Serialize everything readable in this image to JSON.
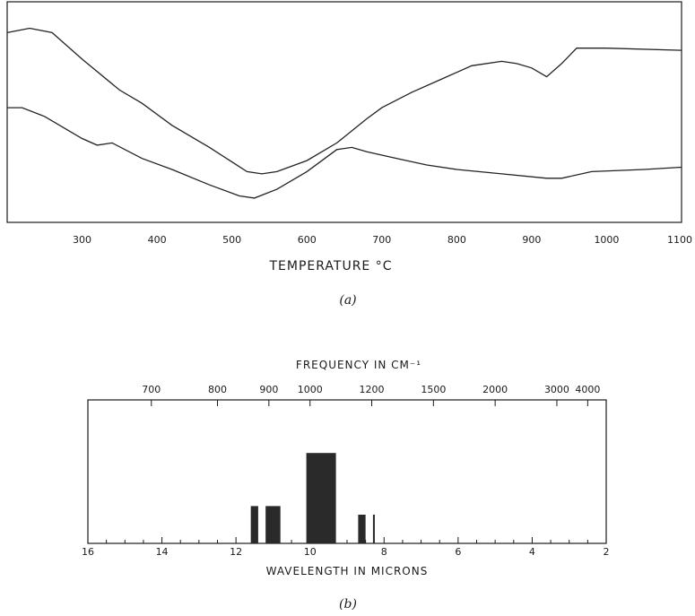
{
  "chart_data": [
    {
      "panel_label": "(a)",
      "type": "line",
      "xlabel": "TEMPERATURE °C",
      "xlim": [
        200,
        1100
      ],
      "xticks": [
        300,
        400,
        500,
        600,
        700,
        800,
        900,
        1000,
        1100
      ],
      "series": [
        {
          "x": [
            200,
            230,
            260,
            300,
            350,
            380,
            420,
            470,
            520,
            540,
            560,
            600,
            640,
            680,
            700,
            740,
            780,
            820,
            860,
            880,
            900,
            920,
            940,
            960,
            1000,
            1100
          ],
          "y": [
            0.86,
            0.88,
            0.86,
            0.74,
            0.6,
            0.54,
            0.44,
            0.34,
            0.23,
            0.22,
            0.23,
            0.28,
            0.36,
            0.47,
            0.52,
            0.59,
            0.65,
            0.71,
            0.73,
            0.72,
            0.7,
            0.66,
            0.72,
            0.79,
            0.79,
            0.78
          ]
        },
        {
          "x": [
            200,
            220,
            250,
            300,
            320,
            340,
            380,
            420,
            470,
            510,
            530,
            560,
            600,
            640,
            660,
            680,
            720,
            760,
            800,
            860,
            920,
            940,
            980,
            1050,
            1100
          ],
          "y": [
            0.52,
            0.52,
            0.48,
            0.38,
            0.35,
            0.36,
            0.29,
            0.24,
            0.17,
            0.12,
            0.11,
            0.15,
            0.23,
            0.33,
            0.34,
            0.32,
            0.29,
            0.26,
            0.24,
            0.22,
            0.2,
            0.2,
            0.23,
            0.24,
            0.25
          ]
        }
      ]
    },
    {
      "panel_label": "(b)",
      "type": "bar",
      "xlabel": "WAVELENGTH IN MICRONS",
      "top_axis_label": "FREQUENCY IN CM⁻¹",
      "xlim": [
        16,
        2
      ],
      "xticks": [
        16,
        14,
        12,
        10,
        8,
        6,
        4,
        2
      ],
      "top_ticks": [
        700,
        800,
        900,
        1000,
        1200,
        1500,
        2000,
        3000,
        4000
      ],
      "ylim": [
        0,
        1
      ],
      "bars": [
        {
          "x_start": 11.6,
          "x_end": 11.4,
          "value": 0.26
        },
        {
          "x_start": 11.2,
          "x_end": 10.8,
          "value": 0.26
        },
        {
          "x_start": 10.1,
          "x_end": 9.3,
          "value": 0.63
        },
        {
          "x_start": 8.7,
          "x_end": 8.5,
          "value": 0.2
        },
        {
          "x_start": 8.3,
          "x_end": 8.25,
          "value": 0.2
        }
      ]
    }
  ]
}
